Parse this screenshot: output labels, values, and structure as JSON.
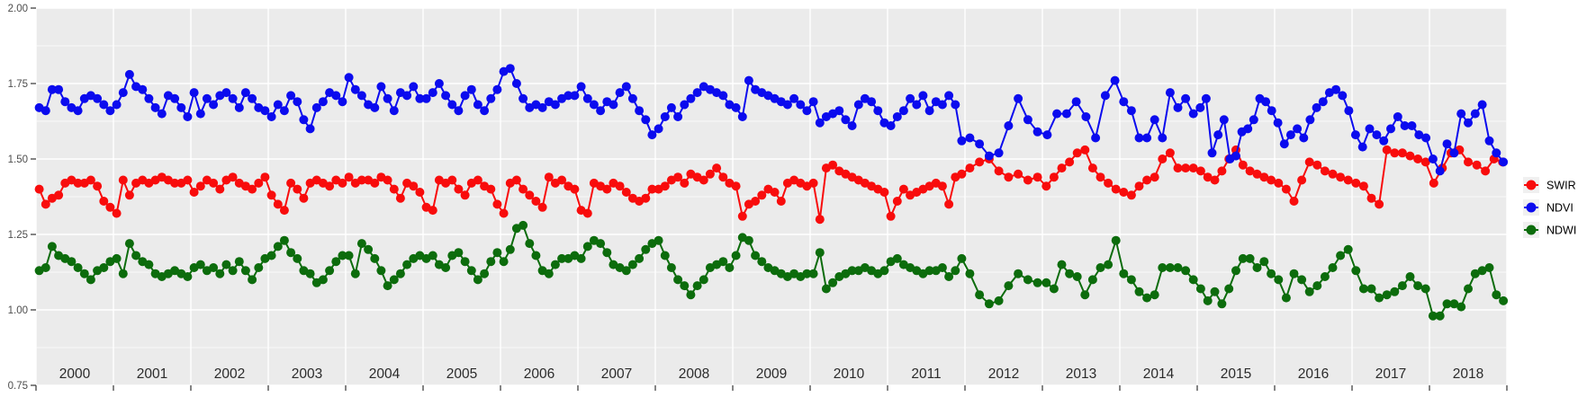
{
  "figure": {
    "background": "#ffffff",
    "panel_background": "#ebebeb",
    "grid_color": "#ffffff",
    "axis_text_color": "#4d4d4d",
    "year_label_color": "#2b2b2b",
    "tick_mark_color": "#333333",
    "legend_key_background": "#f0f0f0",
    "legend_text_color": "#000000"
  },
  "chart_data": {
    "type": "line",
    "title": "",
    "xlabel": "",
    "ylabel": "",
    "x_axis": {
      "range": [
        2000,
        2019
      ],
      "tick_labels": [
        "2000",
        "2001",
        "2002",
        "2003",
        "2004",
        "2005",
        "2006",
        "2007",
        "2008",
        "2009",
        "2010",
        "2011",
        "2012",
        "2013",
        "2014",
        "2015",
        "2016",
        "2017",
        "2018"
      ]
    },
    "y_axis": {
      "range": [
        0.75,
        2.0
      ],
      "tick_values": [
        0.75,
        1.0,
        1.25,
        1.5,
        1.75,
        2.0
      ],
      "tick_labels": [
        "0.75",
        "1.00",
        "1.25",
        "1.50",
        "1.75",
        "2.00"
      ],
      "minor_tick_values": [
        0.875,
        1.125,
        1.375,
        1.625,
        1.875
      ],
      "grid": true
    },
    "legend": {
      "position": "right",
      "entries": [
        {
          "label": "SWIR",
          "color": "#f80c0c"
        },
        {
          "label": "NDVI",
          "color": "#0b0bee"
        },
        {
          "label": "NDWI",
          "color": "#0c6c0c"
        }
      ]
    },
    "series": [
      {
        "name": "SWIR",
        "color": "#f80c0c",
        "values_by_year": {
          "2000": [
            1.4,
            1.35,
            1.37,
            1.38,
            1.42,
            1.43,
            1.42,
            1.42,
            1.43,
            1.41,
            1.36,
            1.34
          ],
          "2001": [
            1.32,
            1.43,
            1.38,
            1.42,
            1.43,
            1.42,
            1.43,
            1.44,
            1.43,
            1.42,
            1.42,
            1.43
          ],
          "2002": [
            1.39,
            1.41,
            1.43,
            1.42,
            1.4,
            1.43,
            1.44,
            1.42,
            1.41,
            1.4,
            1.42,
            1.44
          ],
          "2003": [
            1.38,
            1.35,
            1.33,
            1.42,
            1.4,
            1.37,
            1.42,
            1.43,
            1.42,
            1.41,
            1.43,
            1.42
          ],
          "2004": [
            1.44,
            1.42,
            1.43,
            1.43,
            1.42,
            1.44,
            1.43,
            1.4,
            1.37,
            1.42,
            1.41,
            1.39
          ],
          "2005": [
            1.34,
            1.33,
            1.43,
            1.42,
            1.43,
            1.4,
            1.38,
            1.42,
            1.43,
            1.41,
            1.4,
            1.35
          ],
          "2006": [
            1.32,
            1.42,
            1.43,
            1.4,
            1.38,
            1.36,
            1.34,
            1.44,
            1.42,
            1.43,
            1.41,
            1.4
          ],
          "2007": [
            1.33,
            1.32,
            1.42,
            1.41,
            1.4,
            1.42,
            1.41,
            1.39,
            1.37,
            1.36,
            1.37,
            1.4
          ],
          "2008": [
            1.4,
            1.41,
            1.43,
            1.44,
            1.42,
            1.45,
            1.44,
            1.43,
            1.45,
            1.47,
            1.44,
            1.42
          ],
          "2009": [
            1.41,
            1.31,
            1.35,
            1.36,
            1.38,
            1.4,
            1.39,
            1.36,
            1.42,
            1.43,
            1.42,
            1.41
          ],
          "2010": [
            1.42,
            1.3,
            1.47,
            1.48,
            1.46,
            1.45,
            1.44,
            1.43,
            1.42,
            1.41,
            1.4,
            1.39
          ],
          "2011": [
            1.31,
            1.36,
            1.4,
            1.38,
            1.39,
            1.4,
            1.41,
            1.42,
            1.41,
            1.35,
            1.44,
            1.45
          ],
          "2012": [
            1.47,
            1.49,
            1.5,
            1.46,
            1.44,
            1.45,
            1.43,
            1.44
          ],
          "2013": [
            1.41,
            1.44,
            1.47,
            1.49,
            1.52,
            1.53,
            1.47,
            1.44,
            1.42,
            1.4
          ],
          "2014": [
            1.39,
            1.38,
            1.41,
            1.43,
            1.44,
            1.5,
            1.52,
            1.47,
            1.47,
            1.47
          ],
          "2015": [
            1.46,
            1.44,
            1.43,
            1.46,
            1.5,
            1.53,
            1.48,
            1.46,
            1.45,
            1.44,
            1.43
          ],
          "2016": [
            1.42,
            1.4,
            1.36,
            1.43,
            1.49,
            1.48,
            1.46,
            1.45,
            1.44,
            1.43
          ],
          "2017": [
            1.42,
            1.41,
            1.37,
            1.35,
            1.53,
            1.52,
            1.52,
            1.51,
            1.5,
            1.49
          ],
          "2018": [
            1.42,
            1.47,
            1.52,
            1.53,
            1.49,
            1.48,
            1.46,
            1.5,
            1.49
          ]
        }
      },
      {
        "name": "NDVI",
        "color": "#0b0bee",
        "values_by_year": {
          "2000": [
            1.67,
            1.66,
            1.73,
            1.73,
            1.69,
            1.67,
            1.66,
            1.7,
            1.71,
            1.7,
            1.68,
            1.66
          ],
          "2001": [
            1.68,
            1.72,
            1.78,
            1.74,
            1.73,
            1.7,
            1.67,
            1.65,
            1.71,
            1.7,
            1.67,
            1.64
          ],
          "2002": [
            1.72,
            1.65,
            1.7,
            1.68,
            1.71,
            1.72,
            1.7,
            1.67,
            1.72,
            1.7,
            1.67,
            1.66
          ],
          "2003": [
            1.64,
            1.68,
            1.66,
            1.71,
            1.69,
            1.63,
            1.6,
            1.67,
            1.69,
            1.72,
            1.71,
            1.69
          ],
          "2004": [
            1.77,
            1.73,
            1.71,
            1.68,
            1.67,
            1.74,
            1.7,
            1.66,
            1.72,
            1.71,
            1.74,
            1.7
          ],
          "2005": [
            1.7,
            1.72,
            1.75,
            1.71,
            1.68,
            1.66,
            1.71,
            1.73,
            1.68,
            1.66,
            1.7,
            1.73
          ],
          "2006": [
            1.79,
            1.8,
            1.75,
            1.7,
            1.67,
            1.68,
            1.67,
            1.69,
            1.68,
            1.7,
            1.71,
            1.71
          ],
          "2007": [
            1.74,
            1.7,
            1.68,
            1.66,
            1.69,
            1.68,
            1.72,
            1.74,
            1.7,
            1.66,
            1.63,
            1.58
          ],
          "2008": [
            1.6,
            1.64,
            1.67,
            1.64,
            1.68,
            1.7,
            1.72,
            1.74,
            1.73,
            1.72,
            1.71,
            1.68
          ],
          "2009": [
            1.67,
            1.64,
            1.76,
            1.73,
            1.72,
            1.71,
            1.7,
            1.69,
            1.68,
            1.7,
            1.68,
            1.66
          ],
          "2010": [
            1.69,
            1.62,
            1.64,
            1.65,
            1.66,
            1.63,
            1.61,
            1.68,
            1.7,
            1.69,
            1.66,
            1.62
          ],
          "2011": [
            1.61,
            1.64,
            1.66,
            1.7,
            1.68,
            1.71,
            1.66,
            1.69,
            1.68,
            1.71,
            1.68,
            1.56
          ],
          "2012": [
            1.57,
            1.55,
            1.51,
            1.52,
            1.61,
            1.7,
            1.63,
            1.59
          ],
          "2013": [
            1.58,
            1.65,
            1.65,
            1.69,
            1.64,
            1.57,
            1.71,
            1.76
          ],
          "2014": [
            1.69,
            1.66,
            1.57,
            1.57,
            1.63,
            1.57,
            1.72,
            1.67,
            1.7,
            1.65
          ],
          "2015": [
            1.67,
            1.7,
            1.52,
            1.58,
            1.63,
            1.5,
            1.51,
            1.59,
            1.6,
            1.63,
            1.7,
            1.69,
            1.66
          ],
          "2016": [
            1.62,
            1.55,
            1.58,
            1.6,
            1.57,
            1.63,
            1.67,
            1.69,
            1.72,
            1.73,
            1.71,
            1.66
          ],
          "2017": [
            1.58,
            1.54,
            1.6,
            1.58,
            1.56,
            1.6,
            1.64,
            1.61,
            1.61,
            1.58,
            1.57
          ],
          "2018": [
            1.5,
            1.46,
            1.55,
            1.52,
            1.65,
            1.62,
            1.65,
            1.68,
            1.56,
            1.52,
            1.49
          ]
        }
      },
      {
        "name": "NDWI",
        "color": "#0c6c0c",
        "values_by_year": {
          "2000": [
            1.13,
            1.14,
            1.21,
            1.18,
            1.17,
            1.16,
            1.14,
            1.12,
            1.1,
            1.13,
            1.14,
            1.16
          ],
          "2001": [
            1.17,
            1.12,
            1.22,
            1.18,
            1.16,
            1.15,
            1.12,
            1.11,
            1.12,
            1.13,
            1.12,
            1.11
          ],
          "2002": [
            1.14,
            1.15,
            1.13,
            1.14,
            1.12,
            1.15,
            1.13,
            1.16,
            1.13,
            1.1,
            1.14,
            1.17
          ],
          "2003": [
            1.18,
            1.21,
            1.23,
            1.19,
            1.17,
            1.13,
            1.12,
            1.09,
            1.1,
            1.13,
            1.16,
            1.18
          ],
          "2004": [
            1.18,
            1.12,
            1.22,
            1.2,
            1.17,
            1.13,
            1.08,
            1.1,
            1.12,
            1.15,
            1.17,
            1.18
          ],
          "2005": [
            1.17,
            1.18,
            1.15,
            1.14,
            1.18,
            1.19,
            1.16,
            1.13,
            1.1,
            1.12,
            1.16,
            1.19
          ],
          "2006": [
            1.16,
            1.2,
            1.27,
            1.28,
            1.22,
            1.18,
            1.13,
            1.12,
            1.15,
            1.17,
            1.17,
            1.18
          ],
          "2007": [
            1.17,
            1.21,
            1.23,
            1.22,
            1.19,
            1.15,
            1.14,
            1.13,
            1.15,
            1.17,
            1.2,
            1.22
          ],
          "2008": [
            1.23,
            1.18,
            1.14,
            1.1,
            1.08,
            1.05,
            1.08,
            1.1,
            1.14,
            1.15,
            1.16,
            1.14
          ],
          "2009": [
            1.18,
            1.24,
            1.23,
            1.18,
            1.16,
            1.14,
            1.13,
            1.12,
            1.11,
            1.12,
            1.11,
            1.12
          ],
          "2010": [
            1.12,
            1.19,
            1.07,
            1.09,
            1.11,
            1.12,
            1.13,
            1.13,
            1.14,
            1.13,
            1.12,
            1.13
          ],
          "2011": [
            1.16,
            1.17,
            1.15,
            1.14,
            1.13,
            1.12,
            1.13,
            1.13,
            1.14,
            1.11,
            1.13,
            1.17
          ],
          "2012": [
            1.12,
            1.05,
            1.02,
            1.03,
            1.08,
            1.12,
            1.1,
            1.09
          ],
          "2013": [
            1.09,
            1.07,
            1.15,
            1.12,
            1.11,
            1.05,
            1.1,
            1.14,
            1.15,
            1.23
          ],
          "2014": [
            1.12,
            1.1,
            1.06,
            1.04,
            1.05,
            1.14,
            1.14,
            1.14,
            1.13,
            1.1
          ],
          "2015": [
            1.07,
            1.03,
            1.06,
            1.02,
            1.07,
            1.13,
            1.17,
            1.17,
            1.14,
            1.16,
            1.12
          ],
          "2016": [
            1.1,
            1.04,
            1.12,
            1.1,
            1.06,
            1.08,
            1.11,
            1.14,
            1.18,
            1.2
          ],
          "2017": [
            1.13,
            1.07,
            1.07,
            1.04,
            1.05,
            1.06,
            1.08,
            1.11,
            1.08,
            1.07
          ],
          "2018": [
            0.98,
            0.98,
            1.02,
            1.02,
            1.01,
            1.07,
            1.12,
            1.13,
            1.14,
            1.05,
            1.03
          ]
        }
      }
    ],
    "draw_order": [
      "SWIR",
      "NDVI",
      "NDWI"
    ],
    "point_values_visible": false
  }
}
